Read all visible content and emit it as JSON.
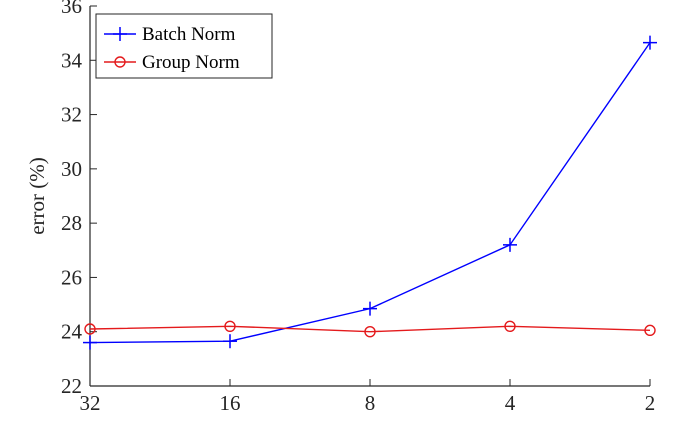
{
  "chart_data": {
    "type": "line",
    "categories": [
      "32",
      "16",
      "8",
      "4",
      "2"
    ],
    "series": [
      {
        "name": "Batch Norm",
        "values": [
          23.6,
          23.65,
          24.85,
          27.2,
          34.65
        ],
        "color": "#0000ff",
        "marker": "plus"
      },
      {
        "name": "Group Norm",
        "values": [
          24.1,
          24.2,
          24.0,
          24.2,
          24.05
        ],
        "color": "#e41a1c",
        "marker": "circle"
      }
    ],
    "title": "",
    "xlabel": "",
    "ylabel": "error (%)",
    "ylim": [
      22,
      36
    ],
    "yticks": [
      "22",
      "24",
      "26",
      "28",
      "30",
      "32",
      "34",
      "36"
    ],
    "grid": false,
    "legend_position": "top-left"
  }
}
